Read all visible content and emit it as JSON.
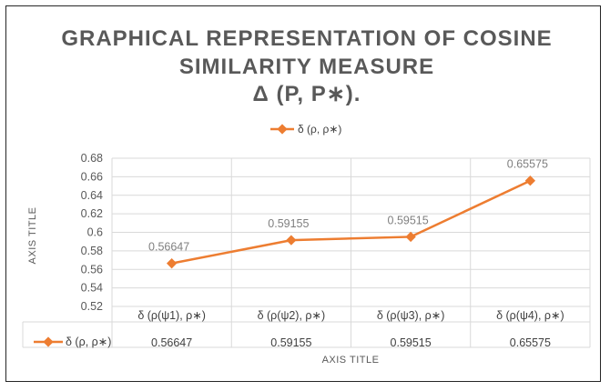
{
  "chart_data": {
    "type": "line",
    "title_lines": [
      "GRAPHICAL REPRESENTATION OF COSINE",
      "SIMILARITY MEASURE",
      "Δ (P, P∗)."
    ],
    "categories": [
      "δ (ρ(ψ1), ρ∗)",
      "δ (ρ(ψ2), ρ∗)",
      "δ (ρ(ψ3), ρ∗)",
      "δ (ρ(ψ4), ρ∗)"
    ],
    "series": [
      {
        "name": "δ (ρ, ρ∗)",
        "values": [
          0.56647,
          0.59155,
          0.59515,
          0.65575
        ],
        "labels": [
          "0.56647",
          "0.59155",
          "0.59515",
          "0.65575"
        ]
      }
    ],
    "ylim": [
      0.52,
      0.68
    ],
    "yticks": [
      "0.52",
      "0.54",
      "0.56",
      "0.58",
      "0.6",
      "0.62",
      "0.64",
      "0.66",
      "0.68"
    ],
    "xlabel": "AXIS TITLE",
    "ylabel": "AXIS TITLE",
    "legend_position": "top",
    "data_table": true,
    "color": "#ed7d31"
  }
}
